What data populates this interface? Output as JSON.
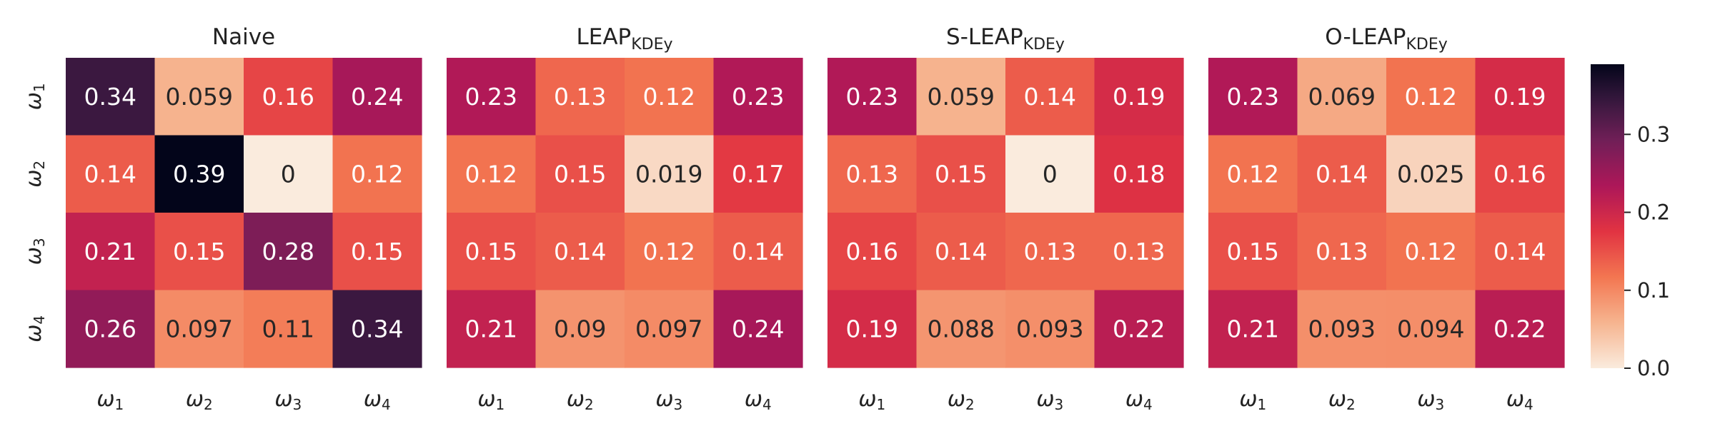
{
  "chart_data": {
    "type": "heatmap",
    "row_labels": [
      "ω1",
      "ω2",
      "ω3",
      "ω4"
    ],
    "col_labels": [
      "ω1",
      "ω2",
      "ω3",
      "ω4"
    ],
    "colorbar": {
      "ticks": [
        0.0,
        0.1,
        0.2,
        0.3
      ],
      "tick_labels": [
        "0.0",
        "0.1",
        "0.2",
        "0.3"
      ],
      "vmin": 0,
      "vmax": 0.39
    },
    "panels": [
      {
        "title": "Naive",
        "title_sub": "",
        "values": [
          [
            0.34,
            0.059,
            0.16,
            0.24
          ],
          [
            0.14,
            0.39,
            0,
            0.12
          ],
          [
            0.21,
            0.15,
            0.28,
            0.15
          ],
          [
            0.26,
            0.097,
            0.11,
            0.34
          ]
        ],
        "labels": [
          [
            "0.34",
            "0.059",
            "0.16",
            "0.24"
          ],
          [
            "0.14",
            "0.39",
            "0",
            "0.12"
          ],
          [
            "0.21",
            "0.15",
            "0.28",
            "0.15"
          ],
          [
            "0.26",
            "0.097",
            "0.11",
            "0.34"
          ]
        ]
      },
      {
        "title": "LEAP",
        "title_sub": "KDEy",
        "values": [
          [
            0.23,
            0.13,
            0.12,
            0.23
          ],
          [
            0.12,
            0.15,
            0.019,
            0.17
          ],
          [
            0.15,
            0.14,
            0.12,
            0.14
          ],
          [
            0.21,
            0.09,
            0.097,
            0.24
          ]
        ],
        "labels": [
          [
            "0.23",
            "0.13",
            "0.12",
            "0.23"
          ],
          [
            "0.12",
            "0.15",
            "0.019",
            "0.17"
          ],
          [
            "0.15",
            "0.14",
            "0.12",
            "0.14"
          ],
          [
            "0.21",
            "0.09",
            "0.097",
            "0.24"
          ]
        ]
      },
      {
        "title": "S-LEAP",
        "title_sub": "KDEy",
        "values": [
          [
            0.23,
            0.059,
            0.14,
            0.19
          ],
          [
            0.13,
            0.15,
            0,
            0.18
          ],
          [
            0.16,
            0.14,
            0.13,
            0.13
          ],
          [
            0.19,
            0.088,
            0.093,
            0.22
          ]
        ],
        "labels": [
          [
            "0.23",
            "0.059",
            "0.14",
            "0.19"
          ],
          [
            "0.13",
            "0.15",
            "0",
            "0.18"
          ],
          [
            "0.16",
            "0.14",
            "0.13",
            "0.13"
          ],
          [
            "0.19",
            "0.088",
            "0.093",
            "0.22"
          ]
        ]
      },
      {
        "title": "O-LEAP",
        "title_sub": "KDEy",
        "values": [
          [
            0.23,
            0.069,
            0.12,
            0.19
          ],
          [
            0.12,
            0.14,
            0.025,
            0.16
          ],
          [
            0.15,
            0.13,
            0.12,
            0.14
          ],
          [
            0.21,
            0.093,
            0.094,
            0.22
          ]
        ],
        "labels": [
          [
            "0.23",
            "0.069",
            "0.12",
            "0.19"
          ],
          [
            "0.12",
            "0.14",
            "0.025",
            "0.16"
          ],
          [
            "0.15",
            "0.13",
            "0.12",
            "0.14"
          ],
          [
            "0.21",
            "0.093",
            "0.094",
            "0.22"
          ]
        ]
      }
    ]
  }
}
